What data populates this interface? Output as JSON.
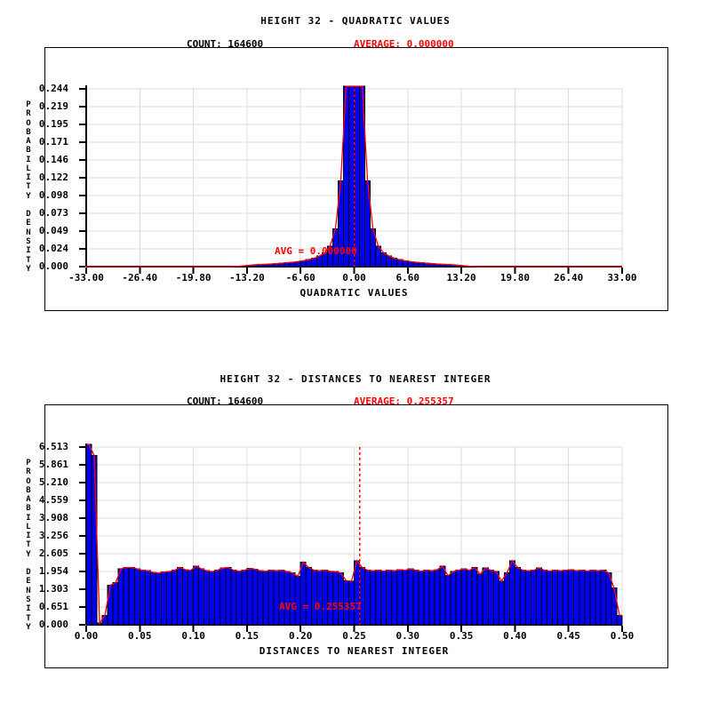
{
  "colors": {
    "bar_fill": "#0000f0",
    "bar_edge": "#000000",
    "density_outline": "#ff0000",
    "accent_red": "#ff0000",
    "grid": "#dcdcdc",
    "axis": "#000000",
    "text": "#000000",
    "background": "#ffffff"
  },
  "chart_data": [
    {
      "type": "bar",
      "title": "HEIGHT 32 - QUADRATIC VALUES",
      "count_label": "COUNT: 164600",
      "average_label": "AVERAGE: 0.000000",
      "avg_annotation": "AVG = 0.000000",
      "xlabel": "QUADRATIC VALUES",
      "ylabel": "PROBABILITY DENSITY",
      "xlim": [
        -33,
        33
      ],
      "ylim": [
        0,
        0.244
      ],
      "x_ticks": [
        "-33.00",
        "-26.40",
        "-19.80",
        "-13.20",
        "-6.60",
        "0.00",
        "6.60",
        "13.20",
        "19.80",
        "26.40",
        "33.00"
      ],
      "y_ticks": [
        "0.244",
        "0.219",
        "0.195",
        "0.171",
        "0.146",
        "0.122",
        "0.098",
        "0.073",
        "0.049",
        "0.024",
        "0.000"
      ],
      "grid": true,
      "legend": "none",
      "avg_value": 0.0,
      "bins": {
        "start": -33,
        "width": 0.66,
        "count": 100
      },
      "values": [
        0,
        0,
        0,
        0,
        0,
        0,
        0,
        0,
        0,
        0,
        0,
        0,
        0,
        0,
        0,
        0,
        0,
        0,
        0,
        0,
        0,
        0,
        0,
        0,
        0,
        0,
        0,
        0.0003,
        0.0006,
        0.0012,
        0.002,
        0.0025,
        0.0029,
        0.0033,
        0.0037,
        0.0042,
        0.0047,
        0.0053,
        0.006,
        0.007,
        0.008,
        0.0095,
        0.0115,
        0.0145,
        0.019,
        0.028,
        0.052,
        0.118,
        0.25,
        0.26,
        0.26,
        0.25,
        0.118,
        0.052,
        0.028,
        0.019,
        0.0145,
        0.0115,
        0.0095,
        0.008,
        0.007,
        0.006,
        0.0053,
        0.0047,
        0.0042,
        0.0037,
        0.0033,
        0.0029,
        0.0025,
        0.002,
        0.0012,
        0.0006,
        0.0003,
        0,
        0,
        0,
        0,
        0,
        0,
        0,
        0,
        0,
        0,
        0,
        0,
        0,
        0,
        0,
        0,
        0,
        0,
        0,
        0,
        0,
        0,
        0,
        0,
        0,
        0,
        0
      ]
    },
    {
      "type": "bar",
      "title": "HEIGHT 32 - DISTANCES TO NEAREST INTEGER",
      "count_label": "COUNT: 164600",
      "average_label": "AVERAGE: 0.255357",
      "avg_annotation": "AVG = 0.255357",
      "xlabel": "DISTANCES TO NEAREST INTEGER",
      "ylabel": "PROBABILITY DENSITY",
      "xlim": [
        0,
        0.5
      ],
      "ylim": [
        0,
        6.513
      ],
      "x_ticks": [
        "0.00",
        "0.05",
        "0.10",
        "0.15",
        "0.20",
        "0.25",
        "0.30",
        "0.35",
        "0.40",
        "0.45",
        "0.50"
      ],
      "y_ticks": [
        "6.513",
        "5.861",
        "5.210",
        "4.559",
        "3.908",
        "3.256",
        "2.605",
        "1.954",
        "1.303",
        "0.651",
        "0.000"
      ],
      "grid": true,
      "legend": "none",
      "avg_value": 0.255357,
      "bins": {
        "start": 0,
        "width": 0.005,
        "count": 100
      },
      "values": [
        6.6,
        6.2,
        0.06,
        0.35,
        1.45,
        1.55,
        2.05,
        2.1,
        2.1,
        2.05,
        2.0,
        1.98,
        1.92,
        1.9,
        1.93,
        1.95,
        2.0,
        2.1,
        2.02,
        2.0,
        2.15,
        2.05,
        1.98,
        1.95,
        2.0,
        2.08,
        2.1,
        2.0,
        1.96,
        2.0,
        2.06,
        2.04,
        1.98,
        1.96,
        2.0,
        1.98,
        2.0,
        1.95,
        1.9,
        1.78,
        2.3,
        2.1,
        2.0,
        1.98,
        2.0,
        1.96,
        1.95,
        1.9,
        1.62,
        1.6,
        2.35,
        2.1,
        2.0,
        1.98,
        2.0,
        1.97,
        2.0,
        1.98,
        2.02,
        2.0,
        2.05,
        2.0,
        1.96,
        2.0,
        1.98,
        2.02,
        2.15,
        1.8,
        1.95,
        2.0,
        2.05,
        2.0,
        2.1,
        1.85,
        2.08,
        2.0,
        1.95,
        1.6,
        1.9,
        2.35,
        2.1,
        2.0,
        1.98,
        2.0,
        2.08,
        2.0,
        1.97,
        2.0,
        1.98,
        2.0,
        2.02,
        1.98,
        2.0,
        1.97,
        2.0,
        1.98,
        2.0,
        1.9,
        1.35,
        0.35
      ]
    }
  ]
}
